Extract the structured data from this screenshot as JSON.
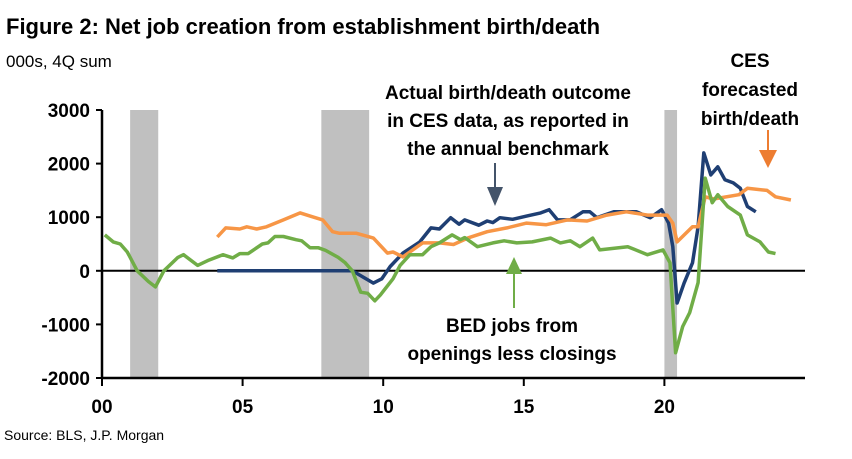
{
  "title": "Figure 2: Net job creation from establishment birth/death",
  "subtitle": "000s, 4Q sum",
  "source": "Source: BLS, J.P. Morgan",
  "chart_data": {
    "type": "line",
    "xlim": [
      2000,
      2025
    ],
    "ylim": [
      -2000,
      3000
    ],
    "yticks": [
      3000,
      2000,
      1000,
      0,
      -1000,
      -2000
    ],
    "ytick_labels": [
      "3000",
      "2000",
      "1000",
      "0",
      "-1000",
      "-2000"
    ],
    "xticks": [
      2000,
      2005,
      2010,
      2015,
      2020
    ],
    "xtick_labels": [
      "00",
      "05",
      "10",
      "15",
      "20"
    ],
    "grid": false,
    "recessions": [
      [
        2001.0,
        2002.0
      ],
      [
        2007.8,
        2009.5
      ],
      [
        2020.0,
        2020.45
      ]
    ],
    "colors": {
      "actual": "#1f3f73",
      "bed": "#70ad47",
      "forecast": "#f79646",
      "forecast_arrow": "#ed7d31",
      "recession": "#c0c0c0"
    },
    "annotations": {
      "actual": [
        "Actual birth/death outcome",
        "in CES data, as reported in",
        "the annual benchmark"
      ],
      "forecast": [
        "CES",
        "forecasted",
        "birth/death"
      ],
      "bed": [
        "BED jobs from",
        "openings less closings"
      ]
    },
    "series": [
      {
        "key": "actual",
        "color": "#1f3f73",
        "x": [
          2004.1,
          2008.9,
          2009.65,
          2009.95,
          2010.25,
          2010.7,
          2011.3,
          2011.7,
          2012.0,
          2012.4,
          2012.7,
          2012.9,
          2013.4,
          2013.7,
          2013.9,
          2014.15,
          2014.6,
          2015.1,
          2015.6,
          2015.9,
          2016.2,
          2016.65,
          2017.1,
          2017.35,
          2017.6,
          2018.2,
          2019.0,
          2019.5,
          2019.9,
          2020.15,
          2020.3,
          2020.45,
          2020.7,
          2021.0,
          2021.2,
          2021.4,
          2021.65,
          2021.9,
          2022.15,
          2022.45,
          2022.7,
          2022.95,
          2023.25
        ],
        "y": [
          0,
          0,
          -230,
          -150,
          80,
          330,
          540,
          800,
          780,
          990,
          870,
          950,
          850,
          930,
          900,
          990,
          960,
          1020,
          1080,
          1140,
          950,
          950,
          1100,
          1100,
          990,
          1100,
          1100,
          990,
          1140,
          890,
          450,
          -600,
          -230,
          150,
          820,
          2200,
          1790,
          1940,
          1700,
          1640,
          1540,
          1200,
          1100
        ]
      },
      {
        "key": "forecast",
        "color": "#f79646",
        "x": [
          2004.1,
          2004.4,
          2004.9,
          2005.15,
          2005.5,
          2005.85,
          2006.45,
          2007.05,
          2007.4,
          2007.85,
          2008.2,
          2008.45,
          2009.05,
          2009.65,
          2010.15,
          2010.35,
          2010.7,
          2011.4,
          2012.0,
          2012.5,
          2013.0,
          2013.7,
          2014.4,
          2015.1,
          2015.8,
          2016.55,
          2017.25,
          2017.95,
          2018.65,
          2019.4,
          2020.1,
          2020.3,
          2020.45,
          2021.0,
          2021.2,
          2021.45,
          2021.75,
          2022.65,
          2022.95,
          2023.65,
          2023.95,
          2024.5
        ],
        "y": [
          630,
          800,
          780,
          820,
          780,
          820,
          950,
          1080,
          1020,
          950,
          730,
          700,
          700,
          610,
          330,
          350,
          260,
          520,
          520,
          490,
          610,
          730,
          800,
          890,
          860,
          950,
          930,
          1040,
          1100,
          1040,
          1040,
          890,
          540,
          820,
          820,
          1380,
          1340,
          1420,
          1540,
          1500,
          1380,
          1320
        ]
      },
      {
        "key": "bed",
        "color": "#70ad47",
        "x": [
          2000.1,
          2000.4,
          2000.65,
          2000.9,
          2001.25,
          2001.65,
          2001.9,
          2002.2,
          2002.7,
          2002.9,
          2003.4,
          2003.8,
          2004.3,
          2004.65,
          2004.9,
          2005.2,
          2005.7,
          2005.9,
          2006.15,
          2006.45,
          2006.9,
          2007.1,
          2007.4,
          2007.7,
          2007.95,
          2008.4,
          2008.65,
          2008.9,
          2009.2,
          2009.45,
          2009.7,
          2009.9,
          2010.35,
          2010.6,
          2010.95,
          2011.4,
          2011.7,
          2012.0,
          2012.45,
          2012.75,
          2012.9,
          2013.35,
          2013.9,
          2014.3,
          2014.75,
          2015.3,
          2015.95,
          2016.3,
          2016.65,
          2017.0,
          2017.45,
          2017.7,
          2018.7,
          2019.4,
          2019.95,
          2020.2,
          2020.4,
          2020.65,
          2020.9,
          2021.2,
          2021.45,
          2021.7,
          2021.9,
          2022.25,
          2022.7,
          2022.95,
          2023.4,
          2023.7,
          2023.95
        ],
        "y": [
          670,
          540,
          500,
          350,
          0,
          -200,
          -300,
          0,
          250,
          300,
          100,
          200,
          300,
          240,
          320,
          320,
          500,
          520,
          640,
          640,
          580,
          560,
          430,
          430,
          380,
          250,
          150,
          0,
          -400,
          -420,
          -560,
          -450,
          -150,
          100,
          300,
          300,
          450,
          520,
          670,
          580,
          620,
          450,
          520,
          560,
          520,
          540,
          610,
          520,
          560,
          450,
          610,
          390,
          450,
          300,
          390,
          150,
          -1530,
          -1040,
          -780,
          -220,
          1730,
          1270,
          1420,
          1200,
          1040,
          670,
          540,
          350,
          320
        ]
      }
    ]
  }
}
